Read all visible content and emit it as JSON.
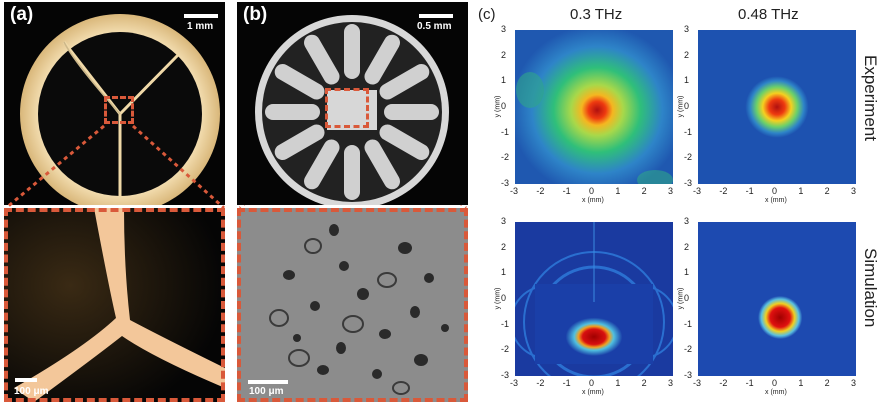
{
  "panel_a": {
    "label": "(a)",
    "scalebar_top": "1 mm",
    "scalebar_bottom": "100 μm"
  },
  "panel_b": {
    "label": "(b)",
    "scalebar_top": "0.5 mm",
    "scalebar_bottom": "100 μm"
  },
  "panel_c": {
    "label": "(c)",
    "col_titles": [
      "0.3 THz",
      "0.48 THz"
    ],
    "row_titles": [
      "Experiment",
      "Simulation"
    ],
    "x_axis_label": "x (mm)",
    "y_axis_label": "y (mm)",
    "ticks": [
      "-3",
      "-2",
      "-1",
      "0",
      "1",
      "2",
      "3"
    ]
  }
}
